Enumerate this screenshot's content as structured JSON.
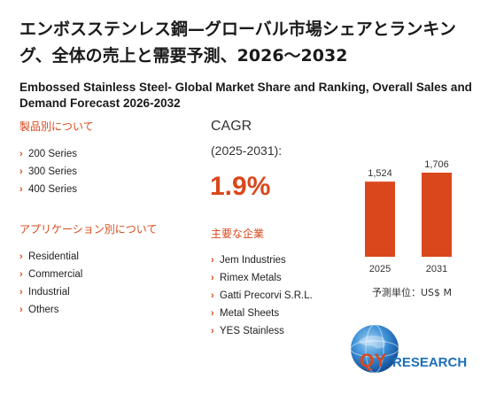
{
  "title_jp": "エンボスステンレス鋼—グローバル市場シェアとランキング、全体の売上と需要予測、2026～2032",
  "title_en": "Embossed Stainless Steel- Global Market Share and Ranking, Overall Sales and Demand Forecast 2026-2032",
  "product_section": {
    "heading": "製品別について",
    "items": [
      "200 Series",
      "300 Series",
      "400 Series"
    ]
  },
  "application_section": {
    "heading": "アプリケーション別について",
    "items": [
      "Residential",
      "Commercial",
      "Industrial",
      "Others"
    ]
  },
  "cagr": {
    "label": "CAGR",
    "period": "(2025-2031):",
    "value": "1.9%"
  },
  "companies_section": {
    "heading": "主要な企業",
    "items": [
      "Jem Industries",
      "Rimex Metals",
      "Gatti Precorvi S.R.L.",
      "Metal Sheets",
      "YES Stainless"
    ]
  },
  "chart_data": {
    "type": "bar",
    "categories": [
      "2025",
      "2031"
    ],
    "values": [
      1524,
      1706
    ],
    "value_labels": [
      "1,524",
      "1,706"
    ],
    "title": "",
    "xlabel": "",
    "ylabel": "",
    "grid": false,
    "unit_label": "予測単位：US$ M"
  },
  "logo": {
    "text_qy": "QY",
    "text_research": "RESEARCH"
  },
  "colors": {
    "accent": "#d9481c",
    "logo_blue": "#1d6fb8"
  }
}
